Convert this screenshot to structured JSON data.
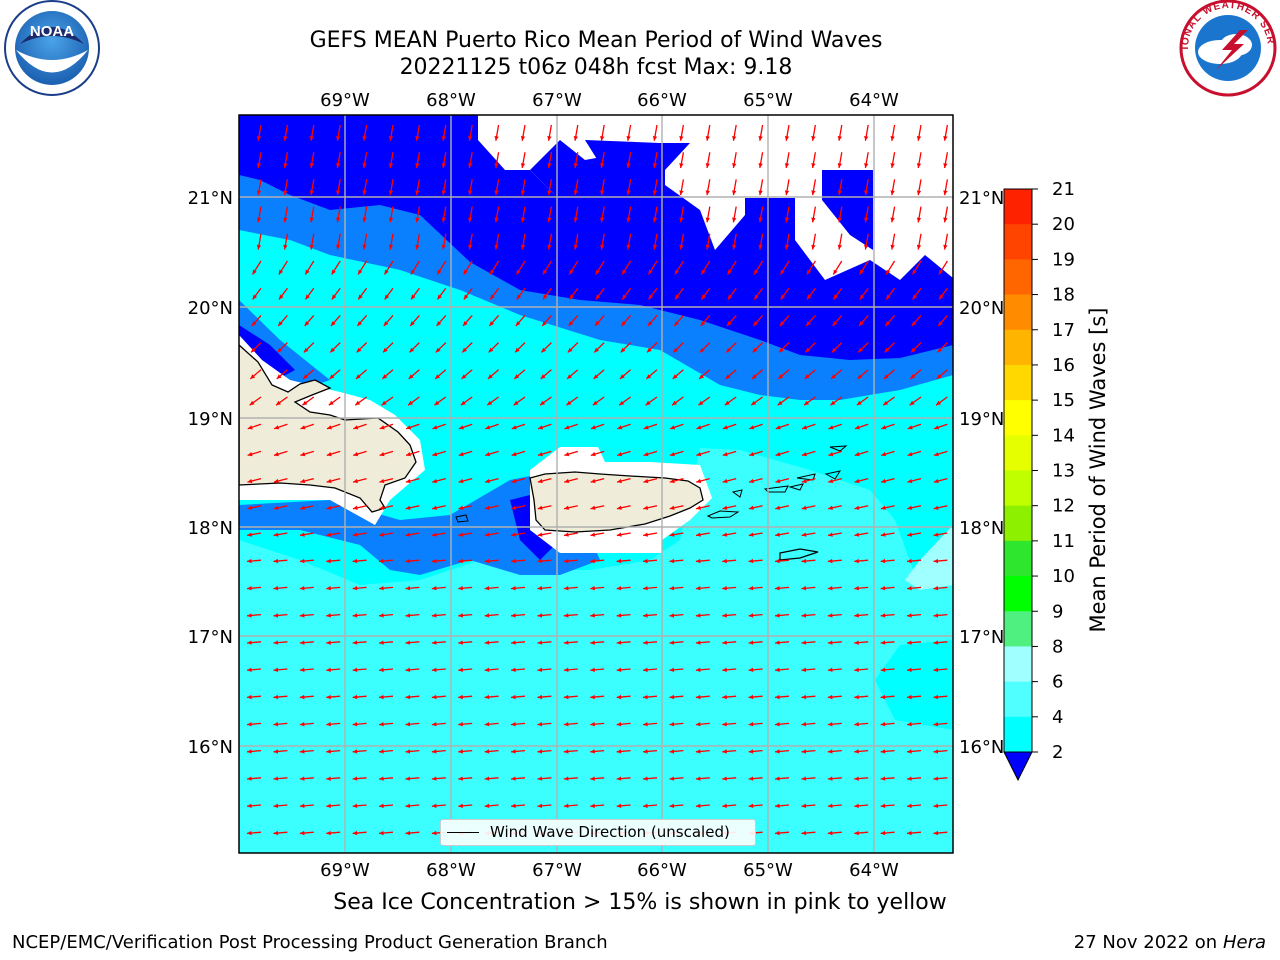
{
  "header": {
    "title_line1": "GEFS MEAN Puerto Rico Mean Period of Wind Waves",
    "title_line2": "20221125 t06z 048h fcst   Max: 9.18"
  },
  "logos": {
    "left": "NOAA",
    "right": "NATIONAL WEATHER SERVICE"
  },
  "map": {
    "lon_labels": [
      "69°W",
      "68°W",
      "67°W",
      "66°W",
      "65°W",
      "64°W"
    ],
    "lat_labels": [
      "21°N",
      "20°N",
      "19°N",
      "18°N",
      "17°N",
      "16°N"
    ],
    "legend_label": "Wind Wave Direction (unscaled)",
    "colors": {
      "land": "#efedd9",
      "band_2_4": "#0000ff",
      "band_4_6": "#0b80ff",
      "band_6_8": "#00ffff",
      "band_8_10": "#3bffff",
      "arrow": "#ff0000"
    }
  },
  "colorbar": {
    "label": "Mean Period of Wind Waves [s]",
    "ticks": [
      "21",
      "20",
      "19",
      "18",
      "17",
      "16",
      "15",
      "14",
      "13",
      "12",
      "11",
      "10",
      "9",
      "8",
      "6",
      "4",
      "2"
    ],
    "colors": [
      "#ff0000",
      "#ff2200",
      "#ff4400",
      "#ff6600",
      "#ff8c00",
      "#ffb400",
      "#ffd800",
      "#ffff00",
      "#e6ff00",
      "#c0ff00",
      "#8cf000",
      "#2ee62e",
      "#00ff00",
      "#50f080",
      "#a0ffff",
      "#50ffff",
      "#00ffff",
      "#0b80ff"
    ],
    "extend_color": "#0000ff"
  },
  "caption": "Sea Ice Concentration > 15% is shown in pink to yellow",
  "footer": {
    "left": "NCEP/EMC/Verification Post Processing Product Generation Branch",
    "date": "27 Nov 2022 on",
    "machine": "Hera"
  }
}
